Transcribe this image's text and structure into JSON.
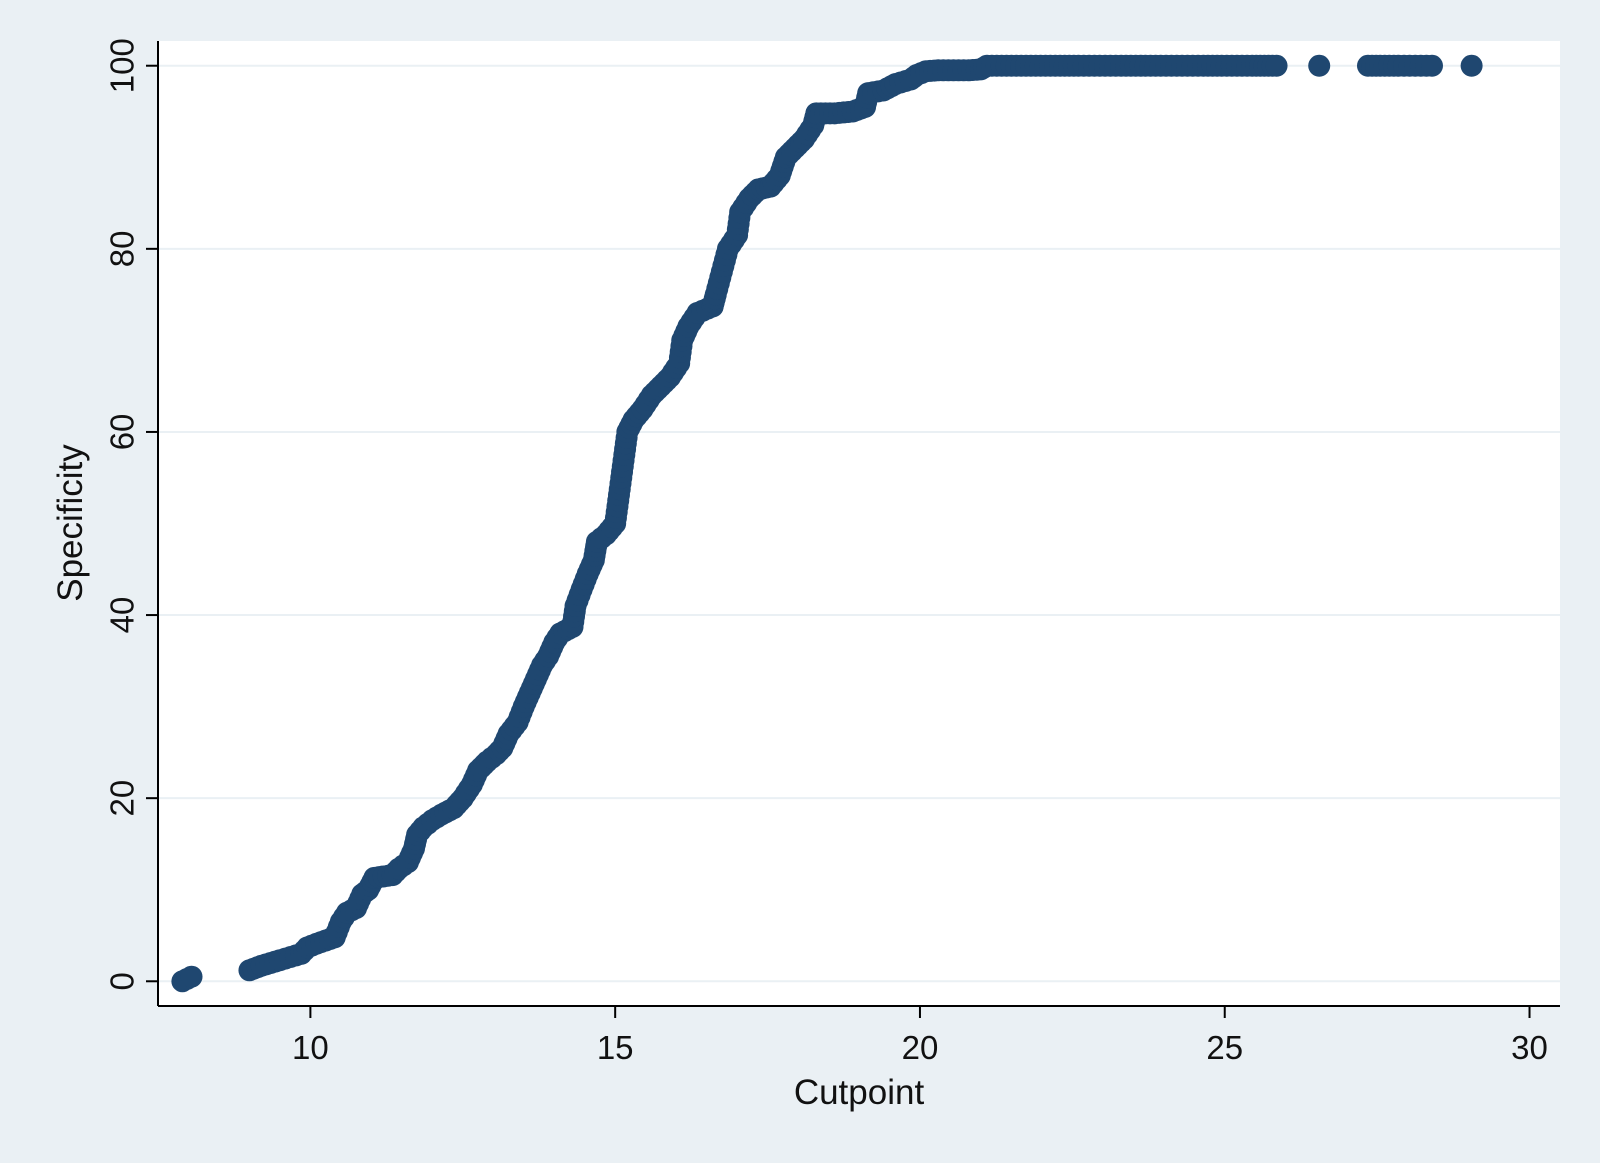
{
  "chart_data": {
    "type": "scatter",
    "title": "",
    "xlabel": "Cutpoint",
    "ylabel": "Specificity",
    "xlim": [
      7.5,
      30.5
    ],
    "ylim": [
      -2.7,
      102.7
    ],
    "xticks": [
      {
        "value": 10,
        "label": "10"
      },
      {
        "value": 15,
        "label": "15"
      },
      {
        "value": 20,
        "label": "20"
      },
      {
        "value": 25,
        "label": "25"
      },
      {
        "value": 30,
        "label": "30"
      }
    ],
    "yticks": [
      {
        "value": 0,
        "label": "0"
      },
      {
        "value": 20,
        "label": "20"
      },
      {
        "value": 40,
        "label": "40"
      },
      {
        "value": 60,
        "label": "60"
      },
      {
        "value": 80,
        "label": "80"
      },
      {
        "value": 100,
        "label": "100"
      }
    ],
    "grid": "horizontal",
    "marker_color": "#1f4770",
    "series": [
      {
        "points": [
          [
            7.9,
            0
          ],
          [
            8.05,
            0.5
          ],
          [
            9.0,
            1.2
          ],
          [
            9.2,
            1.7
          ],
          [
            9.5,
            2.3
          ],
          [
            9.85,
            3.0
          ],
          [
            9.95,
            3.7
          ],
          [
            10.1,
            4.1
          ],
          [
            10.4,
            4.8
          ],
          [
            10.5,
            6.5
          ],
          [
            10.6,
            7.5
          ],
          [
            10.75,
            8.0
          ],
          [
            10.85,
            9.5
          ],
          [
            10.95,
            10.0
          ],
          [
            11.05,
            11.3
          ],
          [
            11.35,
            11.6
          ],
          [
            11.45,
            12.3
          ],
          [
            11.6,
            13.0
          ],
          [
            11.7,
            14.5
          ],
          [
            11.75,
            16.0
          ],
          [
            11.85,
            16.8
          ],
          [
            12.0,
            17.6
          ],
          [
            12.15,
            18.2
          ],
          [
            12.35,
            18.9
          ],
          [
            12.5,
            20.0
          ],
          [
            12.65,
            21.5
          ],
          [
            12.75,
            23.0
          ],
          [
            12.9,
            24.0
          ],
          [
            13.05,
            24.8
          ],
          [
            13.15,
            25.5
          ],
          [
            13.25,
            27.0
          ],
          [
            13.4,
            28.3
          ],
          [
            13.5,
            30.0
          ],
          [
            13.6,
            31.5
          ],
          [
            13.7,
            33.0
          ],
          [
            13.8,
            34.5
          ],
          [
            13.9,
            35.5
          ],
          [
            14.0,
            37.0
          ],
          [
            14.1,
            38.0
          ],
          [
            14.3,
            38.7
          ],
          [
            14.35,
            41.0
          ],
          [
            14.45,
            42.8
          ],
          [
            14.55,
            44.5
          ],
          [
            14.65,
            46.0
          ],
          [
            14.7,
            48.0
          ],
          [
            14.85,
            48.8
          ],
          [
            15.0,
            50.0
          ],
          [
            15.05,
            52.5
          ],
          [
            15.1,
            55.0
          ],
          [
            15.15,
            57.5
          ],
          [
            15.2,
            60.0
          ],
          [
            15.3,
            61.3
          ],
          [
            15.45,
            62.5
          ],
          [
            15.6,
            64.0
          ],
          [
            15.75,
            65.0
          ],
          [
            15.9,
            66.0
          ],
          [
            16.05,
            67.5
          ],
          [
            16.1,
            70.0
          ],
          [
            16.2,
            71.5
          ],
          [
            16.35,
            73.0
          ],
          [
            16.6,
            73.7
          ],
          [
            16.65,
            75.0
          ],
          [
            16.75,
            77.5
          ],
          [
            16.85,
            80.0
          ],
          [
            17.0,
            81.5
          ],
          [
            17.05,
            84.0
          ],
          [
            17.2,
            85.5
          ],
          [
            17.35,
            86.5
          ],
          [
            17.55,
            86.8
          ],
          [
            17.7,
            88.0
          ],
          [
            17.8,
            90.0
          ],
          [
            17.95,
            91.0
          ],
          [
            18.1,
            92.0
          ],
          [
            18.25,
            93.5
          ],
          [
            18.3,
            94.8
          ],
          [
            18.6,
            94.8
          ],
          [
            18.9,
            95.0
          ],
          [
            19.1,
            95.5
          ],
          [
            19.15,
            97.0
          ],
          [
            19.4,
            97.3
          ],
          [
            19.6,
            98.0
          ],
          [
            19.85,
            98.5
          ],
          [
            19.95,
            99.0
          ],
          [
            20.1,
            99.4
          ],
          [
            20.3,
            99.5
          ],
          [
            20.8,
            99.5
          ],
          [
            21.0,
            99.6
          ],
          [
            21.1,
            100
          ],
          [
            21.5,
            100
          ],
          [
            21.9,
            100
          ],
          [
            22.3,
            100
          ],
          [
            22.6,
            100
          ],
          [
            22.95,
            100
          ],
          [
            23.3,
            100
          ],
          [
            23.7,
            100
          ],
          [
            23.95,
            100
          ],
          [
            24.3,
            100
          ],
          [
            24.65,
            100
          ],
          [
            24.95,
            100
          ],
          [
            25.2,
            100
          ],
          [
            25.45,
            100
          ],
          [
            25.65,
            100
          ],
          [
            25.85,
            100
          ],
          [
            26.55,
            100
          ],
          [
            27.35,
            100
          ],
          [
            27.55,
            100
          ],
          [
            27.85,
            100
          ],
          [
            28.4,
            100
          ],
          [
            29.05,
            100
          ]
        ]
      }
    ]
  }
}
